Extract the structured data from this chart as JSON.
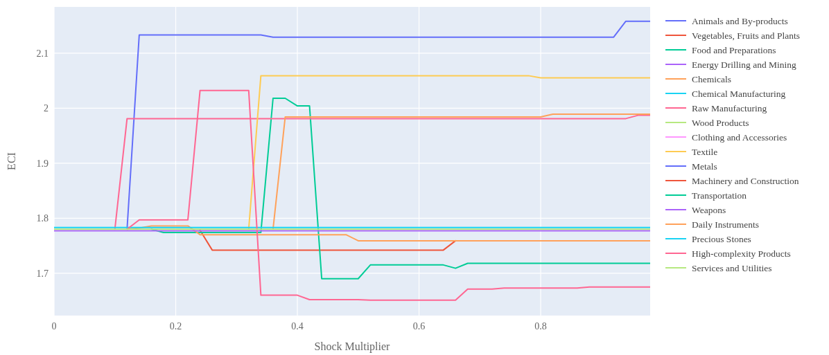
{
  "chart_data": {
    "type": "line",
    "xlabel": "Shock Multiplier",
    "ylabel": "ECI",
    "x": [
      0,
      0.02,
      0.04,
      0.06,
      0.08,
      0.1,
      0.12,
      0.14,
      0.16,
      0.18,
      0.2,
      0.22,
      0.24,
      0.26,
      0.28,
      0.3,
      0.32,
      0.34,
      0.36,
      0.38,
      0.4,
      0.42,
      0.44,
      0.46,
      0.48,
      0.5,
      0.52,
      0.54,
      0.56,
      0.58,
      0.6,
      0.62,
      0.64,
      0.66,
      0.68,
      0.7,
      0.72,
      0.74,
      0.76,
      0.78,
      0.8,
      0.82,
      0.84,
      0.86,
      0.88,
      0.9,
      0.92,
      0.94,
      0.96,
      0.98
    ],
    "xlim": [
      0,
      0.98
    ],
    "xticks": [
      0,
      0.2,
      0.4,
      0.6,
      0.8
    ],
    "ylim": [
      1.623,
      2.184
    ],
    "yticks": [
      1.7,
      1.8,
      1.9,
      2,
      2.1
    ],
    "grid": true,
    "legend": "right",
    "series": [
      {
        "name": "Animals and By-products",
        "color": "#636efa",
        "values": [
          null,
          null,
          null,
          null,
          null,
          null,
          1.78,
          2.133,
          2.133,
          2.133,
          2.133,
          2.133,
          2.133,
          2.133,
          2.133,
          2.133,
          2.133,
          2.133,
          2.129,
          2.129,
          2.129,
          2.129,
          2.129,
          2.129,
          2.129,
          2.129,
          2.129,
          2.129,
          2.129,
          2.129,
          2.129,
          2.129,
          2.129,
          2.129,
          2.129,
          2.129,
          2.129,
          2.129,
          2.129,
          2.129,
          2.129,
          2.129,
          2.129,
          2.129,
          2.129,
          2.129,
          2.129,
          2.158,
          2.158,
          2.158
        ]
      },
      {
        "name": "Vegetables, Fruits and Plants",
        "color": "#ef553b",
        "values": [
          null,
          null,
          null,
          null,
          null,
          null,
          null,
          null,
          null,
          null,
          null,
          null,
          1.778,
          1.742,
          1.742,
          1.742,
          1.742,
          1.742,
          1.742,
          1.742,
          1.742,
          1.742,
          1.742,
          1.742,
          1.742,
          1.742,
          1.742,
          1.742,
          1.742,
          1.742,
          1.742,
          1.742,
          1.742,
          1.759,
          null,
          null,
          null,
          null,
          null,
          null,
          null,
          null,
          null,
          null,
          null,
          null,
          null,
          null,
          null,
          null
        ]
      },
      {
        "name": "Food and Preparations",
        "color": "#00cc96",
        "values": [
          null,
          null,
          null,
          null,
          null,
          null,
          null,
          null,
          1.78,
          1.774,
          1.774,
          1.774,
          1.774,
          1.774,
          1.774,
          1.774,
          1.774,
          1.774,
          2.018,
          2.018,
          2.004,
          2.004,
          1.69,
          1.69,
          1.69,
          1.69,
          1.715,
          1.715,
          1.715,
          1.715,
          1.715,
          1.715,
          1.715,
          1.709,
          1.718,
          1.718,
          1.718,
          1.718,
          1.718,
          1.718,
          1.718,
          1.718,
          1.718,
          1.718,
          1.718,
          1.718,
          1.718,
          1.718,
          1.718,
          1.718
        ]
      },
      {
        "name": "Energy Drilling and Mining",
        "color": "#ab63fa",
        "values": [
          null,
          null,
          null,
          null,
          null,
          null,
          null,
          null,
          null,
          null,
          null,
          null,
          null,
          null,
          null,
          null,
          null,
          null,
          null,
          null,
          null,
          null,
          null,
          null,
          null,
          null,
          null,
          null,
          null,
          null,
          null,
          null,
          null,
          null,
          null,
          null,
          null,
          null,
          null,
          null,
          null,
          null,
          null,
          null,
          null,
          null,
          null,
          null,
          null,
          null
        ]
      },
      {
        "name": "Chemicals",
        "color": "#ffa15a",
        "values": [
          null,
          null,
          null,
          null,
          null,
          null,
          1.78,
          1.782,
          1.786,
          1.786,
          1.786,
          1.786,
          1.77,
          1.77,
          1.77,
          1.77,
          1.77,
          1.77,
          1.77,
          1.77,
          1.77,
          1.77,
          1.77,
          1.77,
          1.77,
          1.759,
          1.759,
          1.759,
          1.759,
          1.759,
          1.759,
          1.759,
          1.759,
          1.759,
          1.759,
          1.759,
          1.759,
          1.759,
          1.759,
          1.759,
          1.759,
          1.759,
          1.759,
          1.759,
          1.759,
          1.759,
          1.759,
          1.759,
          1.759,
          1.759
        ]
      },
      {
        "name": "Chemical Manufacturing",
        "color": "#19d3f3",
        "values": [
          null,
          null,
          null,
          null,
          null,
          null,
          null,
          null,
          null,
          null,
          null,
          null,
          null,
          null,
          null,
          null,
          null,
          null,
          null,
          null,
          null,
          null,
          null,
          null,
          null,
          null,
          null,
          null,
          null,
          null,
          null,
          null,
          null,
          null,
          null,
          null,
          null,
          null,
          null,
          null,
          null,
          null,
          null,
          null,
          null,
          null,
          null,
          null,
          null,
          null
        ]
      },
      {
        "name": "Raw Manufacturing",
        "color": "#ff6692",
        "values": [
          null,
          null,
          null,
          null,
          null,
          1.78,
          1.981,
          1.981,
          1.981,
          1.981,
          1.981,
          1.981,
          1.981,
          1.981,
          1.981,
          1.981,
          1.981,
          1.981,
          1.981,
          1.981,
          1.981,
          1.981,
          1.981,
          1.981,
          1.981,
          1.981,
          1.981,
          1.981,
          1.981,
          1.981,
          1.981,
          1.981,
          1.981,
          1.981,
          1.981,
          1.981,
          1.981,
          1.981,
          1.981,
          1.981,
          1.981,
          1.981,
          1.981,
          1.981,
          1.981,
          1.981,
          1.981,
          1.981,
          1.987,
          1.987
        ]
      },
      {
        "name": "Wood Products",
        "color": "#b6e880",
        "values": [
          null,
          null,
          null,
          null,
          null,
          null,
          null,
          null,
          null,
          null,
          null,
          null,
          null,
          null,
          null,
          null,
          null,
          null,
          null,
          null,
          null,
          null,
          null,
          null,
          null,
          null,
          null,
          null,
          null,
          null,
          null,
          null,
          null,
          null,
          null,
          null,
          null,
          null,
          null,
          null,
          null,
          null,
          null,
          null,
          null,
          null,
          null,
          null,
          null,
          null
        ]
      },
      {
        "name": "Clothing and Accessories",
        "color": "#ff97ff",
        "values": [
          null,
          null,
          null,
          null,
          null,
          null,
          null,
          null,
          null,
          null,
          null,
          null,
          null,
          null,
          null,
          null,
          null,
          null,
          null,
          null,
          null,
          null,
          null,
          null,
          null,
          null,
          null,
          null,
          null,
          null,
          null,
          null,
          null,
          null,
          null,
          null,
          null,
          null,
          null,
          null,
          null,
          null,
          null,
          null,
          null,
          null,
          null,
          null,
          null,
          null
        ]
      },
      {
        "name": "Textile",
        "color": "#fecb52",
        "values": [
          null,
          null,
          null,
          null,
          null,
          null,
          null,
          null,
          null,
          null,
          null,
          null,
          null,
          null,
          null,
          null,
          1.78,
          2.059,
          2.059,
          2.059,
          2.059,
          2.059,
          2.059,
          2.059,
          2.059,
          2.059,
          2.059,
          2.059,
          2.059,
          2.059,
          2.059,
          2.059,
          2.059,
          2.059,
          2.059,
          2.059,
          2.059,
          2.059,
          2.059,
          2.059,
          2.055,
          2.055,
          2.055,
          2.055,
          2.055,
          2.055,
          2.055,
          2.055,
          2.055,
          2.055
        ]
      },
      {
        "name": "Metals",
        "color": "#636efa",
        "values": [
          null,
          null,
          null,
          null,
          null,
          null,
          null,
          null,
          null,
          null,
          null,
          null,
          null,
          null,
          null,
          null,
          null,
          null,
          null,
          null,
          null,
          null,
          null,
          null,
          null,
          null,
          null,
          null,
          null,
          null,
          null,
          null,
          null,
          null,
          null,
          null,
          null,
          null,
          null,
          null,
          null,
          null,
          null,
          null,
          null,
          null,
          null,
          null,
          null,
          null
        ]
      },
      {
        "name": "Machinery and Construction",
        "color": "#ef553b",
        "values": [
          null,
          null,
          null,
          null,
          null,
          null,
          null,
          null,
          null,
          null,
          null,
          null,
          null,
          null,
          null,
          null,
          null,
          null,
          null,
          null,
          null,
          null,
          null,
          null,
          null,
          null,
          null,
          null,
          null,
          null,
          null,
          null,
          null,
          null,
          null,
          null,
          null,
          null,
          null,
          null,
          null,
          null,
          null,
          null,
          null,
          null,
          null,
          null,
          null,
          null
        ]
      },
      {
        "name": "Transportation",
        "color": "#00cc96",
        "values": [
          null,
          null,
          null,
          null,
          null,
          null,
          null,
          null,
          null,
          null,
          null,
          null,
          null,
          null,
          null,
          null,
          null,
          null,
          null,
          null,
          null,
          null,
          null,
          null,
          null,
          null,
          null,
          null,
          null,
          null,
          null,
          null,
          null,
          null,
          null,
          null,
          null,
          null,
          null,
          null,
          null,
          null,
          null,
          null,
          null,
          null,
          null,
          null,
          null,
          null
        ]
      },
      {
        "name": "Weapons",
        "color": "#ab63fa",
        "values": [
          1.777,
          1.777,
          1.777,
          1.777,
          1.777,
          1.777,
          1.777,
          1.777,
          1.777,
          1.777,
          1.777,
          1.777,
          1.777,
          1.777,
          1.777,
          1.777,
          1.777,
          1.777,
          1.777,
          1.777,
          1.777,
          1.777,
          1.777,
          1.777,
          1.777,
          1.777,
          1.777,
          1.777,
          1.777,
          1.777,
          1.777,
          1.777,
          1.777,
          1.777,
          1.777,
          1.777,
          1.777,
          1.777,
          1.777,
          1.777,
          1.777,
          1.777,
          1.777,
          1.777,
          1.777,
          1.777,
          1.777,
          1.777,
          1.777,
          1.777
        ]
      },
      {
        "name": "Daily Instruments",
        "color": "#ffa15a",
        "values": [
          null,
          null,
          null,
          null,
          null,
          null,
          null,
          null,
          null,
          null,
          null,
          null,
          null,
          null,
          null,
          null,
          null,
          null,
          1.78,
          1.984,
          1.984,
          1.984,
          1.984,
          1.984,
          1.984,
          1.984,
          1.984,
          1.984,
          1.984,
          1.984,
          1.984,
          1.984,
          1.984,
          1.984,
          1.984,
          1.984,
          1.984,
          1.984,
          1.984,
          1.984,
          1.984,
          1.989,
          1.989,
          1.989,
          1.989,
          1.989,
          1.989,
          1.989,
          1.989,
          1.989
        ]
      },
      {
        "name": "Precious Stones",
        "color": "#19d3f3",
        "values": [
          1.783,
          1.783,
          1.783,
          1.783,
          1.783,
          1.783,
          1.783,
          1.783,
          1.783,
          1.783,
          1.783,
          1.783,
          1.783,
          1.783,
          1.783,
          1.783,
          1.783,
          1.783,
          1.783,
          1.783,
          1.783,
          1.783,
          1.783,
          1.783,
          1.783,
          1.783,
          1.783,
          1.783,
          1.783,
          1.783,
          1.783,
          1.783,
          1.783,
          1.783,
          1.783,
          1.783,
          1.783,
          1.783,
          1.783,
          1.783,
          1.783,
          1.783,
          1.783,
          1.783,
          1.783,
          1.783,
          1.783,
          1.783,
          1.783,
          1.783
        ]
      },
      {
        "name": "High-complexity Products",
        "color": "#ff6692",
        "values": [
          null,
          null,
          null,
          null,
          null,
          null,
          1.78,
          1.797,
          1.797,
          1.797,
          1.797,
          1.797,
          2.032,
          2.032,
          2.032,
          2.032,
          2.032,
          1.66,
          1.66,
          1.66,
          1.66,
          1.652,
          1.652,
          1.652,
          1.652,
          1.652,
          1.651,
          1.651,
          1.651,
          1.651,
          1.651,
          1.651,
          1.651,
          1.651,
          1.671,
          1.671,
          1.671,
          1.673,
          1.673,
          1.673,
          1.673,
          1.673,
          1.673,
          1.673,
          1.675,
          1.675,
          1.675,
          1.675,
          1.675,
          1.675
        ]
      },
      {
        "name": "Services and Utilities",
        "color": "#b6e880",
        "values": [
          1.78,
          1.78,
          1.78,
          1.78,
          1.78,
          1.78,
          1.78,
          1.78,
          1.78,
          1.78,
          1.78,
          1.78,
          1.78,
          1.78,
          1.78,
          1.78,
          1.78,
          1.78,
          1.78,
          1.78,
          1.78,
          1.78,
          1.78,
          1.78,
          1.78,
          1.78,
          1.78,
          1.78,
          1.78,
          1.78,
          1.78,
          1.78,
          1.78,
          1.78,
          1.78,
          1.78,
          1.78,
          1.78,
          1.78,
          1.78,
          1.78,
          1.78,
          1.78,
          1.78,
          1.78,
          1.78,
          1.78,
          1.78,
          1.78,
          1.78
        ]
      }
    ]
  }
}
